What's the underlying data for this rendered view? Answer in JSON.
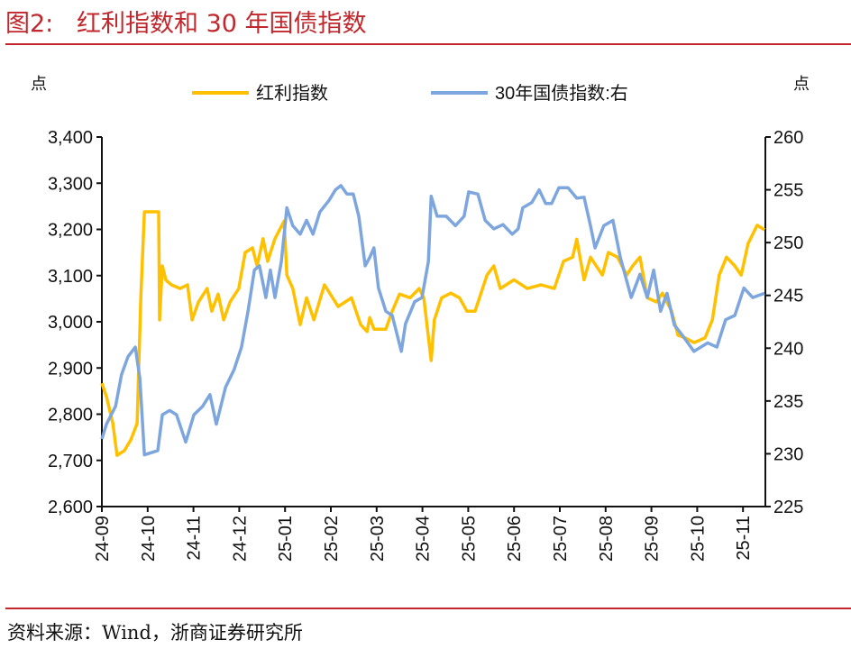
{
  "figure": {
    "title": "图2:   红利指数和 30 年国债指数",
    "source": "资料来源：Wind，浙商证券研究所"
  },
  "chart_data": {
    "type": "line",
    "title": "红利指数和 30 年国债指数",
    "x_unit": "months since 2024-09",
    "x_ticks": [
      "24-09",
      "24-10",
      "24-11",
      "24-12",
      "25-01",
      "25-02",
      "25-03",
      "25-04",
      "25-05",
      "25-06",
      "25-07",
      "25-08",
      "25-09",
      "25-10",
      "25-11"
    ],
    "xlim": [
      0,
      14.5
    ],
    "y_left": {
      "label": "点",
      "ylim": [
        2600,
        3400
      ],
      "ticks": [
        "2,600",
        "2,700",
        "2,800",
        "2,900",
        "3,000",
        "3,100",
        "3,200",
        "3,300",
        "3,400"
      ]
    },
    "y_right": {
      "label": "点",
      "ylim": [
        225,
        260
      ],
      "ticks": [
        "225",
        "230",
        "235",
        "240",
        "245",
        "250",
        "255",
        "260"
      ]
    },
    "grid": false,
    "legend_position": "top",
    "series": [
      {
        "name": "红利指数",
        "axis": "left",
        "color": "#FFC000",
        "points": [
          [
            0,
            2867
          ],
          [
            0.1,
            2838
          ],
          [
            0.24,
            2780
          ],
          [
            0.33,
            2711
          ],
          [
            0.49,
            2721
          ],
          [
            0.63,
            2744
          ],
          [
            0.77,
            2780
          ],
          [
            0.85,
            3053
          ],
          [
            0.93,
            3238
          ],
          [
            1.24,
            3238
          ],
          [
            1.26,
            3004
          ],
          [
            1.32,
            3121
          ],
          [
            1.4,
            3090
          ],
          [
            1.52,
            3080
          ],
          [
            1.71,
            3072
          ],
          [
            1.87,
            3080
          ],
          [
            1.97,
            3004
          ],
          [
            2.11,
            3043
          ],
          [
            2.3,
            3072
          ],
          [
            2.4,
            3023
          ],
          [
            2.54,
            3060
          ],
          [
            2.66,
            3004
          ],
          [
            2.8,
            3043
          ],
          [
            2.99,
            3072
          ],
          [
            3.13,
            3150
          ],
          [
            3.29,
            3160
          ],
          [
            3.39,
            3121
          ],
          [
            3.52,
            3180
          ],
          [
            3.62,
            3131
          ],
          [
            3.78,
            3180
          ],
          [
            3.98,
            3218
          ],
          [
            4.04,
            3101
          ],
          [
            4.17,
            3072
          ],
          [
            4.33,
            2994
          ],
          [
            4.47,
            3052
          ],
          [
            4.63,
            3004
          ],
          [
            4.86,
            3080
          ],
          [
            5.16,
            3033
          ],
          [
            5.45,
            3052
          ],
          [
            5.65,
            2994
          ],
          [
            5.79,
            2979
          ],
          [
            5.85,
            3009
          ],
          [
            5.94,
            2984
          ],
          [
            6.2,
            2984
          ],
          [
            6.34,
            3023
          ],
          [
            6.5,
            3060
          ],
          [
            6.73,
            3052
          ],
          [
            6.93,
            3072
          ],
          [
            7.03,
            3052
          ],
          [
            7.19,
            2916
          ],
          [
            7.26,
            3004
          ],
          [
            7.42,
            3052
          ],
          [
            7.62,
            3062
          ],
          [
            7.81,
            3052
          ],
          [
            7.97,
            3023
          ],
          [
            8.15,
            3023
          ],
          [
            8.41,
            3101
          ],
          [
            8.56,
            3121
          ],
          [
            8.7,
            3072
          ],
          [
            9.0,
            3091
          ],
          [
            9.29,
            3072
          ],
          [
            9.59,
            3080
          ],
          [
            9.88,
            3072
          ],
          [
            10.08,
            3131
          ],
          [
            10.28,
            3140
          ],
          [
            10.37,
            3179
          ],
          [
            10.53,
            3091
          ],
          [
            10.67,
            3140
          ],
          [
            10.93,
            3101
          ],
          [
            11.06,
            3150
          ],
          [
            11.26,
            3140
          ],
          [
            11.46,
            3101
          ],
          [
            11.59,
            3121
          ],
          [
            11.75,
            3140
          ],
          [
            11.91,
            3052
          ],
          [
            12.11,
            3043
          ],
          [
            12.24,
            3062
          ],
          [
            12.44,
            3023
          ],
          [
            12.58,
            2971
          ],
          [
            12.74,
            2965
          ],
          [
            12.93,
            2955
          ],
          [
            13.17,
            2965
          ],
          [
            13.33,
            3004
          ],
          [
            13.48,
            3101
          ],
          [
            13.64,
            3140
          ],
          [
            13.82,
            3121
          ],
          [
            13.96,
            3101
          ],
          [
            14.11,
            3169
          ],
          [
            14.31,
            3209
          ],
          [
            14.47,
            3199
          ]
        ]
      },
      {
        "name": "30年国债指数:右",
        "axis": "right",
        "color": "#7EA6DE",
        "points": [
          [
            0,
            231.4
          ],
          [
            0.1,
            232.8
          ],
          [
            0.3,
            234.5
          ],
          [
            0.43,
            237.5
          ],
          [
            0.57,
            239.2
          ],
          [
            0.73,
            240.1
          ],
          [
            0.83,
            237.1
          ],
          [
            0.93,
            229.9
          ],
          [
            1.22,
            230.3
          ],
          [
            1.32,
            233.7
          ],
          [
            1.48,
            234.1
          ],
          [
            1.63,
            233.7
          ],
          [
            1.83,
            231.1
          ],
          [
            2.01,
            233.7
          ],
          [
            2.2,
            234.5
          ],
          [
            2.36,
            235.6
          ],
          [
            2.5,
            232.8
          ],
          [
            2.7,
            236.3
          ],
          [
            2.89,
            238.0
          ],
          [
            3.05,
            240.1
          ],
          [
            3.19,
            243.5
          ],
          [
            3.33,
            247.4
          ],
          [
            3.44,
            247.8
          ],
          [
            3.58,
            244.8
          ],
          [
            3.68,
            247.4
          ],
          [
            3.78,
            244.8
          ],
          [
            3.92,
            248.2
          ],
          [
            4.04,
            253.3
          ],
          [
            4.17,
            251.6
          ],
          [
            4.33,
            250.8
          ],
          [
            4.47,
            252.1
          ],
          [
            4.61,
            250.8
          ],
          [
            4.76,
            252.9
          ],
          [
            4.96,
            254.0
          ],
          [
            5.1,
            255.0
          ],
          [
            5.22,
            255.4
          ],
          [
            5.35,
            254.6
          ],
          [
            5.49,
            254.6
          ],
          [
            5.61,
            252.5
          ],
          [
            5.75,
            247.8
          ],
          [
            5.85,
            248.6
          ],
          [
            5.94,
            249.5
          ],
          [
            6.04,
            245.7
          ],
          [
            6.2,
            243.5
          ],
          [
            6.34,
            243.1
          ],
          [
            6.54,
            239.7
          ],
          [
            6.63,
            242.3
          ],
          [
            6.83,
            244.4
          ],
          [
            6.99,
            244.8
          ],
          [
            7.13,
            248.2
          ],
          [
            7.19,
            254.4
          ],
          [
            7.32,
            252.5
          ],
          [
            7.52,
            252.5
          ],
          [
            7.72,
            251.6
          ],
          [
            7.91,
            252.5
          ],
          [
            8.01,
            254.8
          ],
          [
            8.21,
            254.6
          ],
          [
            8.37,
            252.1
          ],
          [
            8.56,
            251.3
          ],
          [
            8.76,
            251.7
          ],
          [
            8.96,
            250.8
          ],
          [
            9.09,
            251.3
          ],
          [
            9.19,
            253.3
          ],
          [
            9.39,
            253.8
          ],
          [
            9.55,
            255.0
          ],
          [
            9.69,
            253.7
          ],
          [
            9.82,
            253.7
          ],
          [
            9.98,
            255.2
          ],
          [
            10.18,
            255.2
          ],
          [
            10.37,
            254.2
          ],
          [
            10.53,
            254.3
          ],
          [
            10.67,
            251.6
          ],
          [
            10.77,
            249.5
          ],
          [
            10.96,
            251.6
          ],
          [
            11.16,
            252.1
          ],
          [
            11.32,
            248.6
          ],
          [
            11.56,
            244.8
          ],
          [
            11.75,
            247.0
          ],
          [
            11.91,
            244.8
          ],
          [
            12.05,
            247.4
          ],
          [
            12.2,
            243.5
          ],
          [
            12.34,
            245.2
          ],
          [
            12.5,
            242.2
          ],
          [
            12.68,
            241.2
          ],
          [
            12.93,
            239.7
          ],
          [
            13.23,
            240.5
          ],
          [
            13.43,
            240.1
          ],
          [
            13.62,
            242.7
          ],
          [
            13.82,
            243.1
          ],
          [
            14.02,
            245.7
          ],
          [
            14.21,
            244.8
          ],
          [
            14.47,
            245.2
          ]
        ]
      }
    ]
  }
}
